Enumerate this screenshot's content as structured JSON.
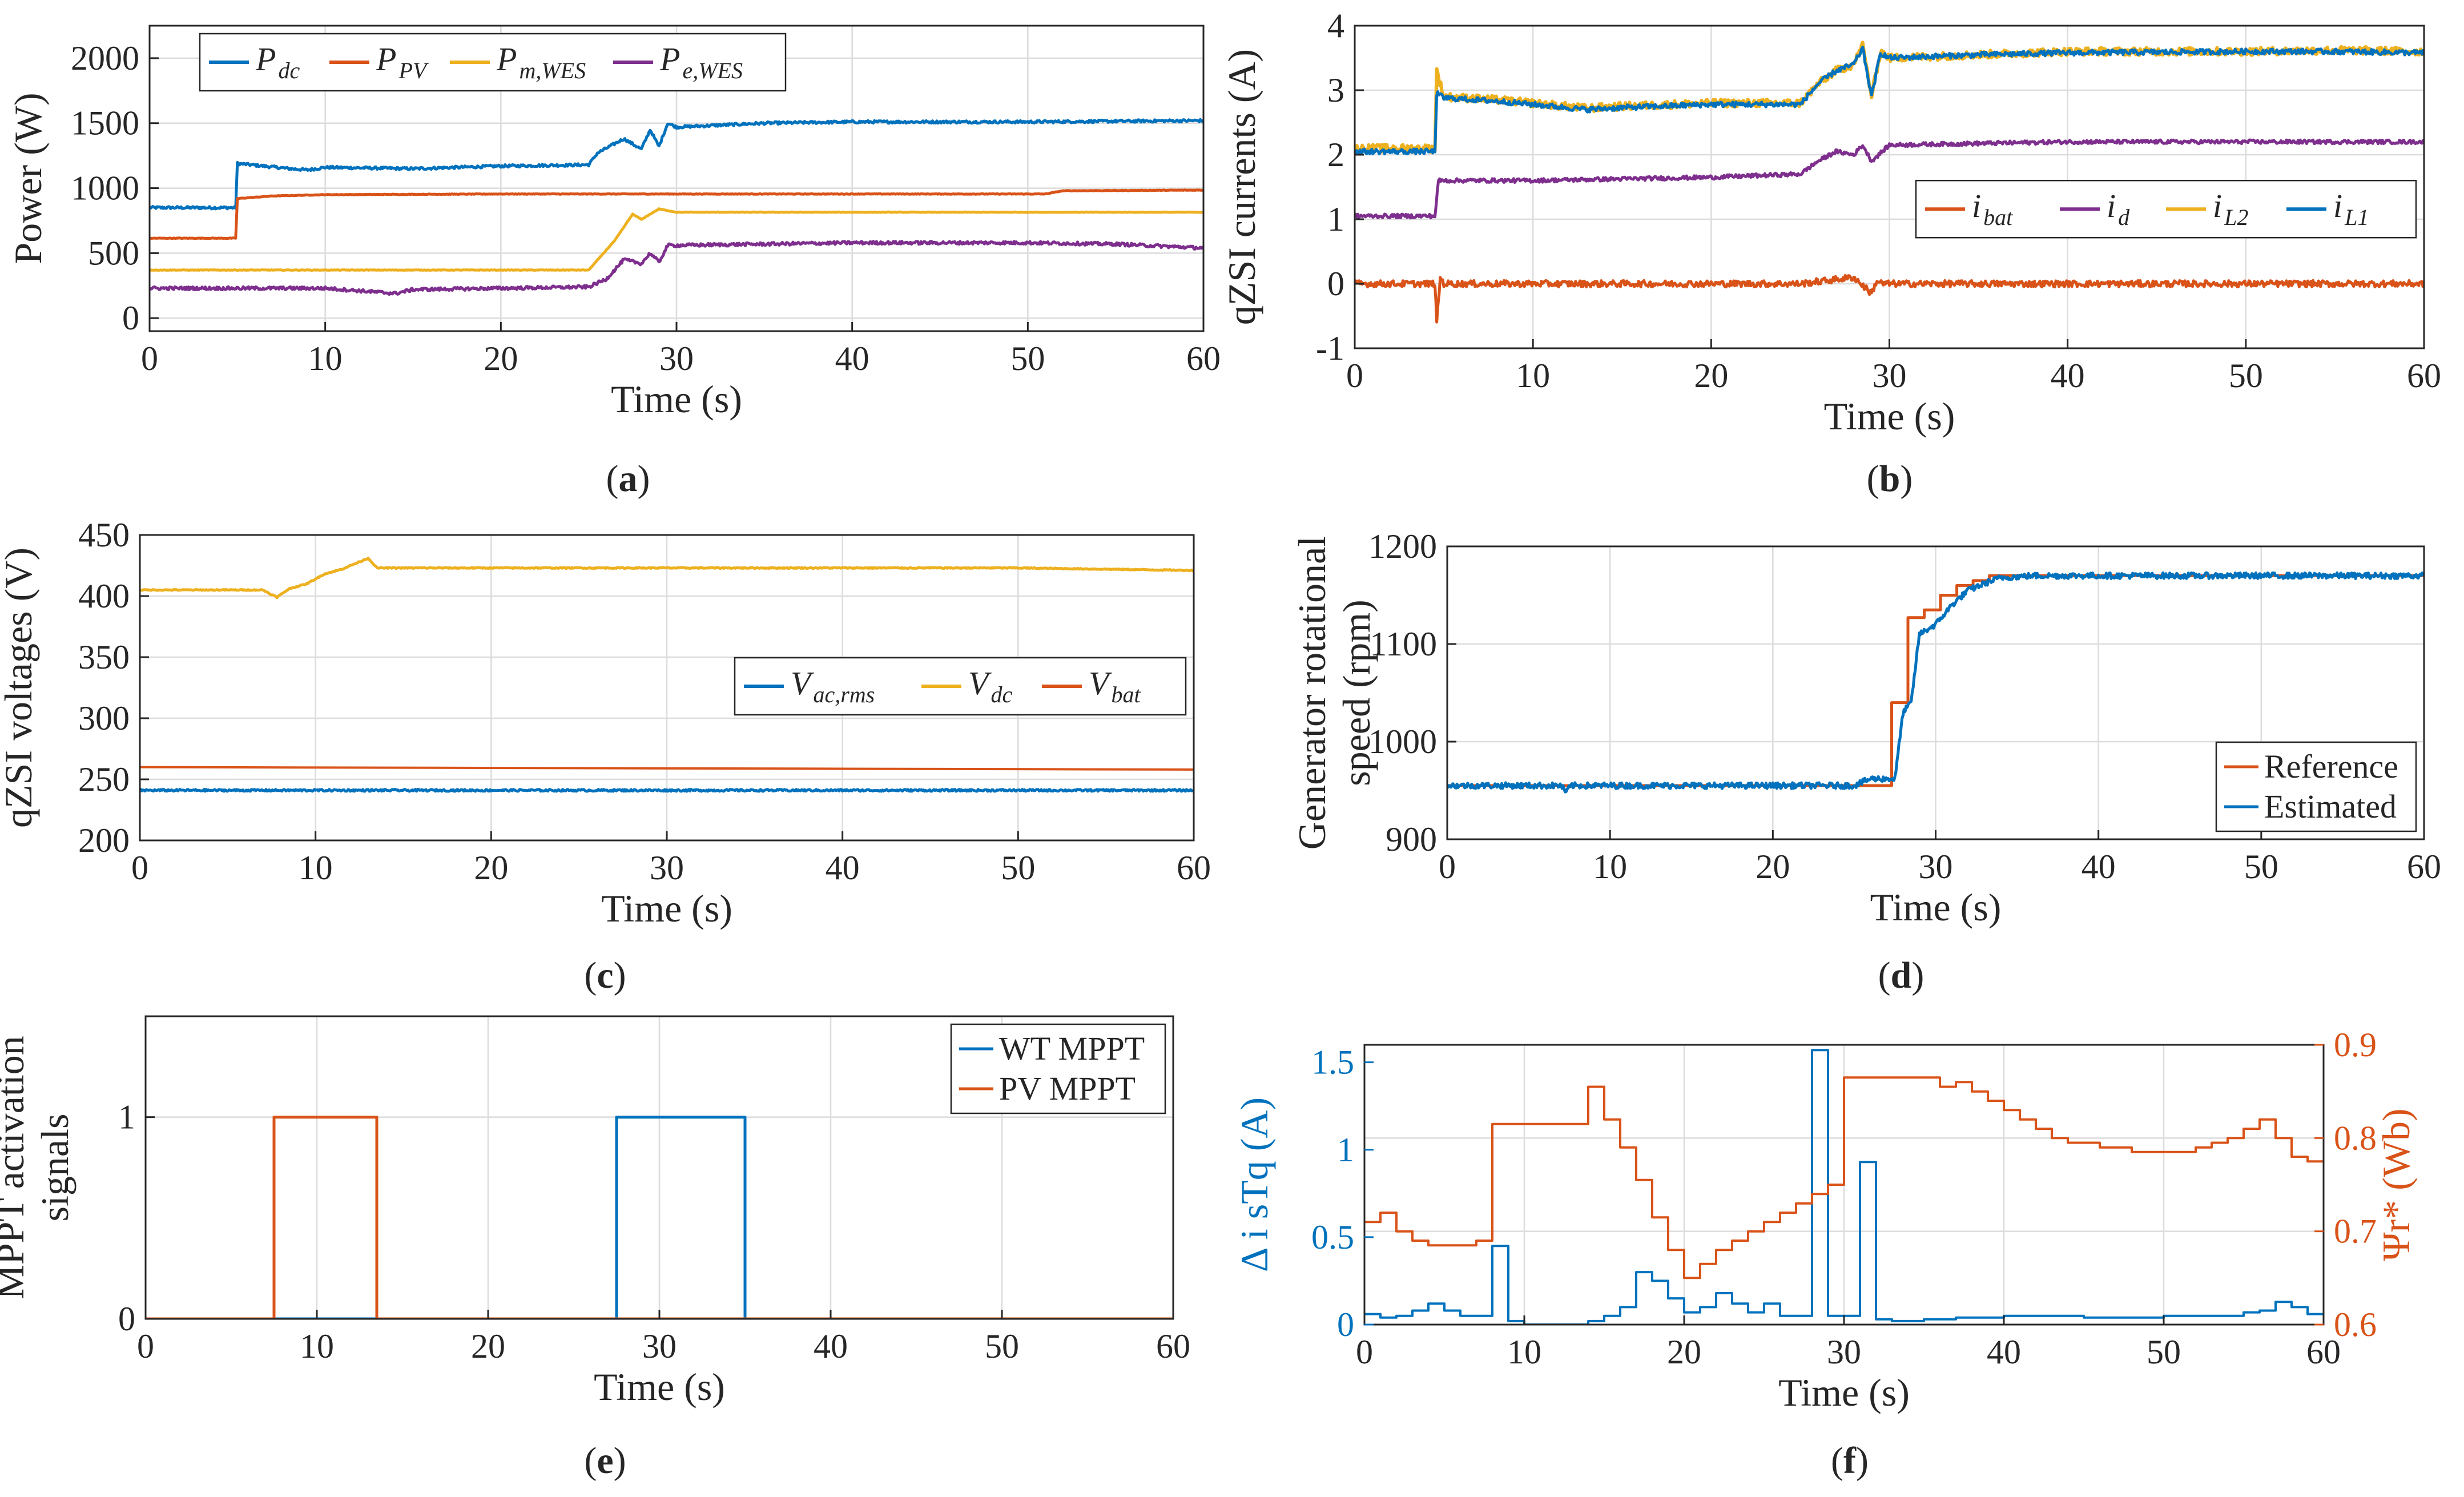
{
  "figure": {
    "colors": {
      "blue": "#0072BD",
      "orange": "#D95319",
      "yellow": "#EDB120",
      "purple": "#7E2F8E",
      "grid": "#dcdcdc",
      "axis": "#262626"
    }
  },
  "chart_data": [
    {
      "id": "a",
      "caption": {
        "open": "(",
        "letter": "a",
        "close": ")"
      },
      "type": "line",
      "xlabel": "Time (s)",
      "ylabel": "Power (W)",
      "xlim": [
        0,
        60
      ],
      "ylim": [
        -100,
        2250
      ],
      "xticks": [
        0,
        10,
        20,
        30,
        40,
        50,
        60
      ],
      "yticks": [
        0,
        500,
        1000,
        1500,
        2000
      ],
      "grid": true,
      "legend": {
        "position": "top",
        "orientation": "horizontal"
      },
      "series": [
        {
          "name": "P",
          "sub": "dc",
          "color": "blue",
          "width": 5,
          "noise": 10,
          "x": [
            0,
            4.9,
            5,
            8,
            9,
            10,
            15,
            20,
            25,
            25.5,
            27,
            28,
            28.5,
            29,
            29.5,
            30,
            35,
            40,
            45,
            50,
            55,
            60
          ],
          "y": [
            850,
            850,
            1190,
            1150,
            1140,
            1160,
            1150,
            1170,
            1180,
            1270,
            1380,
            1300,
            1450,
            1320,
            1500,
            1470,
            1500,
            1510,
            1510,
            1510,
            1515,
            1520
          ]
        },
        {
          "name": "P",
          "sub": "PV",
          "color": "orange",
          "width": 5,
          "noise": 2,
          "x": [
            0,
            4.9,
            5,
            7,
            10,
            20,
            30,
            40,
            51,
            52,
            60
          ],
          "y": [
            615,
            615,
            920,
            940,
            950,
            955,
            955,
            955,
            955,
            980,
            985
          ]
        },
        {
          "name": "P",
          "sub": "m,WES",
          "color": "yellow",
          "width": 5,
          "noise": 2,
          "x": [
            0,
            25,
            26.5,
            27.5,
            28,
            29,
            30,
            40,
            50,
            60
          ],
          "y": [
            370,
            370,
            600,
            800,
            760,
            840,
            815,
            815,
            815,
            815
          ]
        },
        {
          "name": "P",
          "sub": "e,WES",
          "color": "purple",
          "width": 5,
          "noise": 12,
          "x": [
            0,
            10,
            13,
            14,
            15,
            20,
            25,
            26,
            27,
            28,
            28.5,
            29,
            29.5,
            30,
            35,
            40,
            45,
            50,
            55,
            60
          ],
          "y": [
            230,
            230,
            200,
            190,
            220,
            230,
            240,
            300,
            450,
            420,
            500,
            430,
            560,
            560,
            570,
            580,
            580,
            580,
            570,
            540
          ]
        }
      ]
    },
    {
      "id": "b",
      "caption": {
        "open": "(",
        "letter": "b",
        "close": ")"
      },
      "type": "line",
      "xlabel": "Time (s)",
      "ylabel": "qZSI currents (A)",
      "xlim": [
        0,
        60
      ],
      "ylim": [
        -1,
        4
      ],
      "xticks": [
        0,
        10,
        20,
        30,
        40,
        50,
        60
      ],
      "yticks": [
        -1,
        0,
        1,
        2,
        3,
        4
      ],
      "grid": true,
      "legend": {
        "position": "right",
        "orientation": "horizontal"
      },
      "series": [
        {
          "name": "i",
          "sub": "bat",
          "color": "orange",
          "width": 5,
          "noise": 0.05,
          "x": [
            0,
            4.5,
            4.6,
            4.8,
            5,
            10,
            20,
            25,
            28,
            29,
            29.3,
            29.6,
            30,
            40,
            50,
            60
          ],
          "y": [
            0,
            0,
            -0.6,
            0.1,
            0,
            0,
            0,
            0,
            0.1,
            -0.15,
            0.05,
            0,
            0,
            0,
            0,
            0
          ]
        },
        {
          "name": "i",
          "sub": "d",
          "color": "purple",
          "width": 5,
          "noise": 0.03,
          "x": [
            0,
            4.5,
            4.7,
            10,
            20,
            25,
            26,
            27,
            28,
            28.5,
            29,
            30,
            40,
            50,
            60
          ],
          "y": [
            1.05,
            1.05,
            1.6,
            1.6,
            1.65,
            1.7,
            1.9,
            2.05,
            2.0,
            2.15,
            1.9,
            2.15,
            2.2,
            2.2,
            2.2
          ]
        },
        {
          "name": "i",
          "sub": "L2",
          "color": "yellow",
          "width": 6,
          "noise": 0.06,
          "x": [
            0,
            4.5,
            4.6,
            5,
            8,
            10,
            13,
            15,
            20,
            25,
            26,
            27,
            28,
            28.5,
            29,
            29.5,
            30,
            35,
            40,
            50,
            55,
            60
          ],
          "y": [
            2.1,
            2.1,
            3.3,
            2.9,
            2.85,
            2.8,
            2.72,
            2.75,
            2.8,
            2.8,
            3.1,
            3.3,
            3.4,
            3.7,
            2.9,
            3.6,
            3.5,
            3.55,
            3.6,
            3.6,
            3.62,
            3.6
          ]
        },
        {
          "name": "i",
          "sub": "L1",
          "color": "blue",
          "width": 5,
          "noise": 0.04,
          "x": [
            0,
            4.5,
            4.6,
            5,
            8,
            10,
            13,
            15,
            20,
            25,
            26,
            27,
            28,
            28.5,
            29,
            29.5,
            30,
            35,
            40,
            50,
            55,
            60
          ],
          "y": [
            2.05,
            2.05,
            2.95,
            2.88,
            2.83,
            2.78,
            2.7,
            2.73,
            2.78,
            2.78,
            3.1,
            3.3,
            3.4,
            3.65,
            2.9,
            3.58,
            3.5,
            3.55,
            3.58,
            3.6,
            3.6,
            3.58
          ]
        }
      ]
    },
    {
      "id": "c",
      "caption": {
        "open": "(",
        "letter": "c",
        "close": ")"
      },
      "type": "line",
      "xlabel": "Time (s)",
      "ylabel": "qZSI voltages (V)",
      "xlim": [
        0,
        60
      ],
      "ylim": [
        200,
        450
      ],
      "xticks": [
        0,
        10,
        20,
        30,
        40,
        50,
        60
      ],
      "yticks": [
        200,
        250,
        300,
        350,
        400,
        450
      ],
      "grid": true,
      "legend": {
        "position": "right",
        "orientation": "horizontal"
      },
      "series": [
        {
          "name": "V",
          "sub": "ac,rms",
          "color": "blue",
          "width": 5,
          "noise": 0.8,
          "x": [
            0,
            10,
            20,
            30,
            40,
            50,
            60
          ],
          "y": [
            241,
            241,
            241,
            241,
            241,
            241,
            241
          ]
        },
        {
          "name": "V",
          "sub": "dc",
          "color": "yellow",
          "width": 5,
          "noise": 0.4,
          "x": [
            0,
            7,
            7.8,
            8.5,
            9.5,
            10.5,
            11.5,
            12.5,
            13,
            13.5,
            15,
            30,
            50,
            55,
            60
          ],
          "y": [
            405,
            405,
            399,
            406,
            410,
            418,
            422,
            428,
            431,
            423,
            423,
            423,
            423,
            422,
            421
          ]
        },
        {
          "name": "V",
          "sub": "bat",
          "color": "orange",
          "width": 4,
          "noise": 0,
          "x": [
            0,
            60
          ],
          "y": [
            260,
            258
          ]
        }
      ]
    },
    {
      "id": "d",
      "caption": {
        "open": "(",
        "letter": "d",
        "close": ")"
      },
      "type": "line",
      "xlabel": "Time (s)",
      "ylabel": [
        "Generator rotational",
        "speed (rpm)"
      ],
      "xlim": [
        0,
        60
      ],
      "ylim": [
        900,
        1200
      ],
      "xticks": [
        0,
        10,
        20,
        30,
        40,
        50,
        60
      ],
      "yticks": [
        900,
        1000,
        1100,
        1200
      ],
      "grid": true,
      "legend": {
        "position": "bottom-right",
        "orientation": "vertical"
      },
      "series": [
        {
          "name": "Reference",
          "sub": "",
          "color": "orange",
          "width": 5,
          "noise": 0,
          "x": [
            0,
            27.3,
            27.3,
            28.3,
            28.3,
            29.3,
            29.3,
            30.3,
            30.3,
            31.3,
            31.3,
            32.3,
            32.3,
            33.3,
            33.3,
            35,
            60
          ],
          "y": [
            955,
            955,
            1040,
            1040,
            1127,
            1127,
            1135,
            1135,
            1150,
            1150,
            1160,
            1160,
            1165,
            1165,
            1170,
            1170,
            1170
          ]
        },
        {
          "name": "Estimated",
          "sub": "",
          "color": "blue",
          "width": 5,
          "noise": 3,
          "x": [
            0,
            7,
            7.3,
            7.6,
            10,
            20,
            25,
            26,
            27.5,
            28,
            28.5,
            29,
            30,
            31,
            32,
            33,
            34,
            36,
            40,
            60
          ],
          "y": [
            955,
            955,
            948,
            955,
            955,
            955,
            955,
            962,
            962,
            1030,
            1040,
            1110,
            1120,
            1140,
            1155,
            1162,
            1168,
            1170,
            1170,
            1170
          ]
        }
      ]
    },
    {
      "id": "e",
      "caption": {
        "open": "(",
        "letter": "e",
        "close": ")"
      },
      "type": "line",
      "xlabel": "Time (s)",
      "ylabel": [
        "MPPT activation",
        "signals"
      ],
      "xlim": [
        0,
        60
      ],
      "ylim": [
        0,
        1.5
      ],
      "xticks": [
        0,
        10,
        20,
        30,
        40,
        50,
        60
      ],
      "yticks": [
        0,
        1
      ],
      "grid": true,
      "legend": {
        "position": "top-right",
        "orientation": "vertical"
      },
      "series": [
        {
          "name": "WT MPPT",
          "sub": "",
          "color": "blue",
          "width": 5,
          "noise": 0,
          "x": [
            0,
            27.5,
            27.5,
            35,
            35,
            60
          ],
          "y": [
            0,
            0,
            1,
            1,
            0,
            0
          ]
        },
        {
          "name": "PV MPPT",
          "sub": "",
          "color": "orange",
          "width": 5,
          "noise": 0,
          "x": [
            0,
            7.5,
            7.5,
            13.5,
            13.5,
            60
          ],
          "y": [
            0,
            0,
            1,
            1,
            0,
            0
          ]
        }
      ]
    },
    {
      "id": "f",
      "caption": {
        "open": "(",
        "letter": "f",
        "close": ")"
      },
      "type": "line",
      "xlabel": "Time (s)",
      "ylabel_left": "Δ i sTq (A)",
      "ylabel_right": "Ψr* (Wb)",
      "xlim": [
        0,
        60
      ],
      "ylim": [
        0,
        1.6
      ],
      "ylim_right": [
        0.6,
        0.9
      ],
      "xticks": [
        0,
        10,
        20,
        30,
        40,
        50,
        60
      ],
      "yticks": [
        0,
        0.5,
        1,
        1.5
      ],
      "yticks_right": [
        0.6,
        0.7,
        0.8,
        0.9
      ],
      "grid": true,
      "series": [
        {
          "name": "Δ i_sTq",
          "axis": "left",
          "step": true,
          "color": "blue",
          "width": 4,
          "noise": 0,
          "x": [
            0,
            1,
            2,
            3,
            4,
            5,
            6,
            7,
            8,
            9,
            10,
            11,
            12,
            13,
            14,
            15,
            16,
            17,
            18,
            19,
            20,
            21,
            22,
            23,
            24,
            25,
            26,
            27,
            28,
            29,
            30,
            31,
            32,
            33,
            35,
            37,
            40,
            45,
            50,
            55,
            56,
            57,
            58,
            59
          ],
          "y": [
            0.06,
            0.04,
            0.05,
            0.08,
            0.12,
            0.08,
            0.05,
            0.05,
            0.45,
            0.02,
            0.0,
            0.0,
            0.0,
            0.0,
            0.02,
            0.05,
            0.1,
            0.3,
            0.25,
            0.15,
            0.07,
            0.1,
            0.18,
            0.12,
            0.07,
            0.12,
            0.05,
            0.05,
            1.57,
            0.05,
            0.05,
            0.93,
            0.03,
            0.02,
            0.03,
            0.04,
            0.05,
            0.04,
            0.05,
            0.07,
            0.08,
            0.13,
            0.1,
            0.06
          ]
        },
        {
          "name": "Ψr*",
          "axis": "right",
          "step": true,
          "color": "orange",
          "width": 4,
          "noise": 0,
          "x": [
            0,
            1,
            2,
            3,
            4,
            5,
            6,
            7,
            8,
            13,
            14,
            15,
            16,
            17,
            18,
            19,
            20,
            21,
            22,
            23,
            24,
            25,
            26,
            27,
            28,
            29,
            30,
            31,
            35,
            36,
            37,
            38,
            39,
            40,
            41,
            42,
            43,
            44,
            46,
            48,
            50,
            52,
            53,
            54,
            55,
            56,
            57,
            58,
            59
          ],
          "y": [
            0.71,
            0.72,
            0.7,
            0.69,
            0.685,
            0.685,
            0.685,
            0.69,
            0.815,
            0.815,
            0.855,
            0.82,
            0.79,
            0.755,
            0.715,
            0.68,
            0.65,
            0.665,
            0.68,
            0.69,
            0.7,
            0.71,
            0.72,
            0.73,
            0.74,
            0.75,
            0.865,
            0.865,
            0.865,
            0.855,
            0.86,
            0.85,
            0.84,
            0.83,
            0.82,
            0.81,
            0.8,
            0.795,
            0.79,
            0.785,
            0.785,
            0.79,
            0.795,
            0.8,
            0.81,
            0.82,
            0.8,
            0.78,
            0.775
          ]
        }
      ]
    }
  ]
}
